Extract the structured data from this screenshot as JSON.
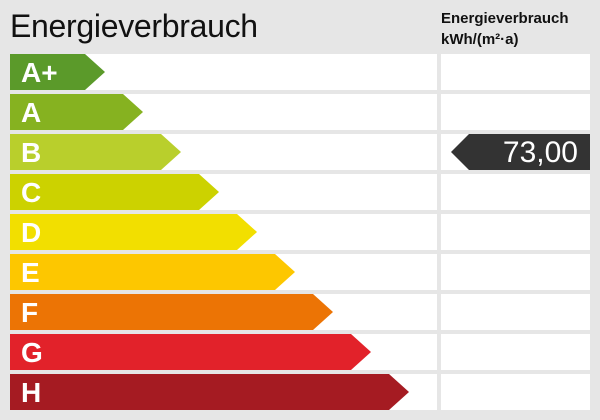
{
  "header": {
    "title": "Energieverbrauch",
    "unit_line1": "Energieverbrauch",
    "unit_line2": "kWh/(m²·a)"
  },
  "chart_data": {
    "type": "bar",
    "title": "Energieverbrauch",
    "categories": [
      "A+",
      "A",
      "B",
      "C",
      "D",
      "E",
      "F",
      "G",
      "H"
    ],
    "colors": [
      "#5b9a2a",
      "#86b220",
      "#b9cf2c",
      "#ccd200",
      "#f2df00",
      "#fdc700",
      "#ec7405",
      "#e2222a",
      "#a51b22"
    ],
    "value": {
      "label": "73,00",
      "class": "B",
      "color": "#333333"
    }
  }
}
